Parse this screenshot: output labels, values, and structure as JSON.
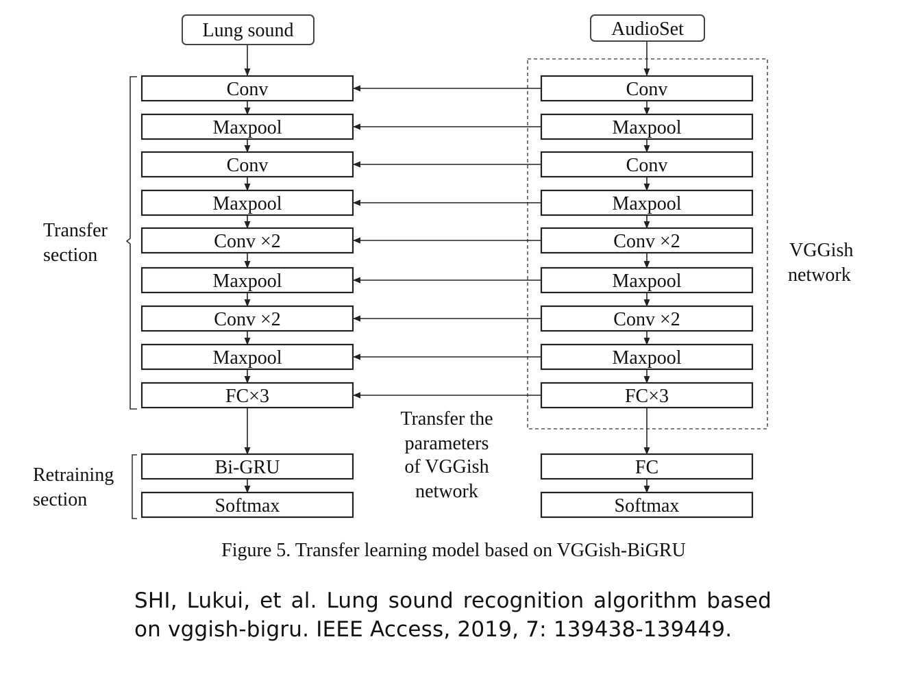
{
  "inputs": {
    "left": "Lung sound",
    "right": "AudioSet"
  },
  "left_column": [
    "Conv",
    "Maxpool",
    "Conv",
    "Maxpool",
    "Conv ×2",
    "Maxpool",
    "Conv ×2",
    "Maxpool",
    "FC×3"
  ],
  "right_column": [
    "Conv",
    "Maxpool",
    "Conv",
    "Maxpool",
    "Conv ×2",
    "Maxpool",
    "Conv ×2",
    "Maxpool",
    "FC×3"
  ],
  "left_bottom": [
    "Bi-GRU",
    "Softmax"
  ],
  "right_bottom": [
    "FC",
    "Softmax"
  ],
  "labels": {
    "transfer_section": [
      "Transfer",
      "section"
    ],
    "retraining_section": [
      "Retraining",
      "section"
    ],
    "vggish_network": [
      "VGGish",
      "network"
    ],
    "transfer_params": [
      "Transfer the",
      "parameters",
      "of VGGish",
      "network"
    ]
  },
  "caption": "Figure 5.  Transfer learning model based on VGGish-BiGRU",
  "citation": "SHI, Lukui, et al. Lung sound recognition algorithm based on vggish-bigru. IEEE Access, 2019, 7: 139438-139449."
}
